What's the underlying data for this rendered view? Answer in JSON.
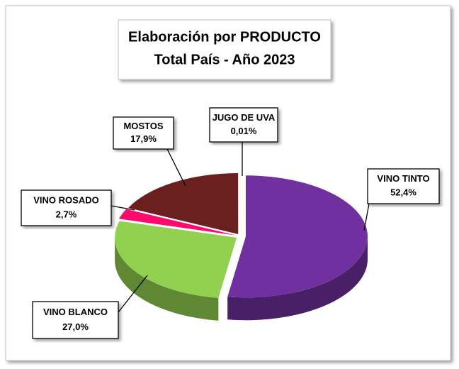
{
  "chart_data": {
    "type": "pie3d",
    "title": "Elaboración por PRODUCTO",
    "subtitle": "Total País - Año 2023",
    "categories": [
      "VINO TINTO",
      "VINO BLANCO",
      "VINO ROSADO",
      "MOSTOS",
      "JUGO DE UVA"
    ],
    "values": [
      52.4,
      27.0,
      2.7,
      17.9,
      0.01
    ],
    "value_labels": [
      "52,4%",
      "27,0%",
      "2,7%",
      "17,9%",
      "0,01%"
    ],
    "colors": [
      "#7030a0",
      "#92d050",
      "#ff0a6c",
      "#6b2020",
      "#ffc000"
    ]
  }
}
